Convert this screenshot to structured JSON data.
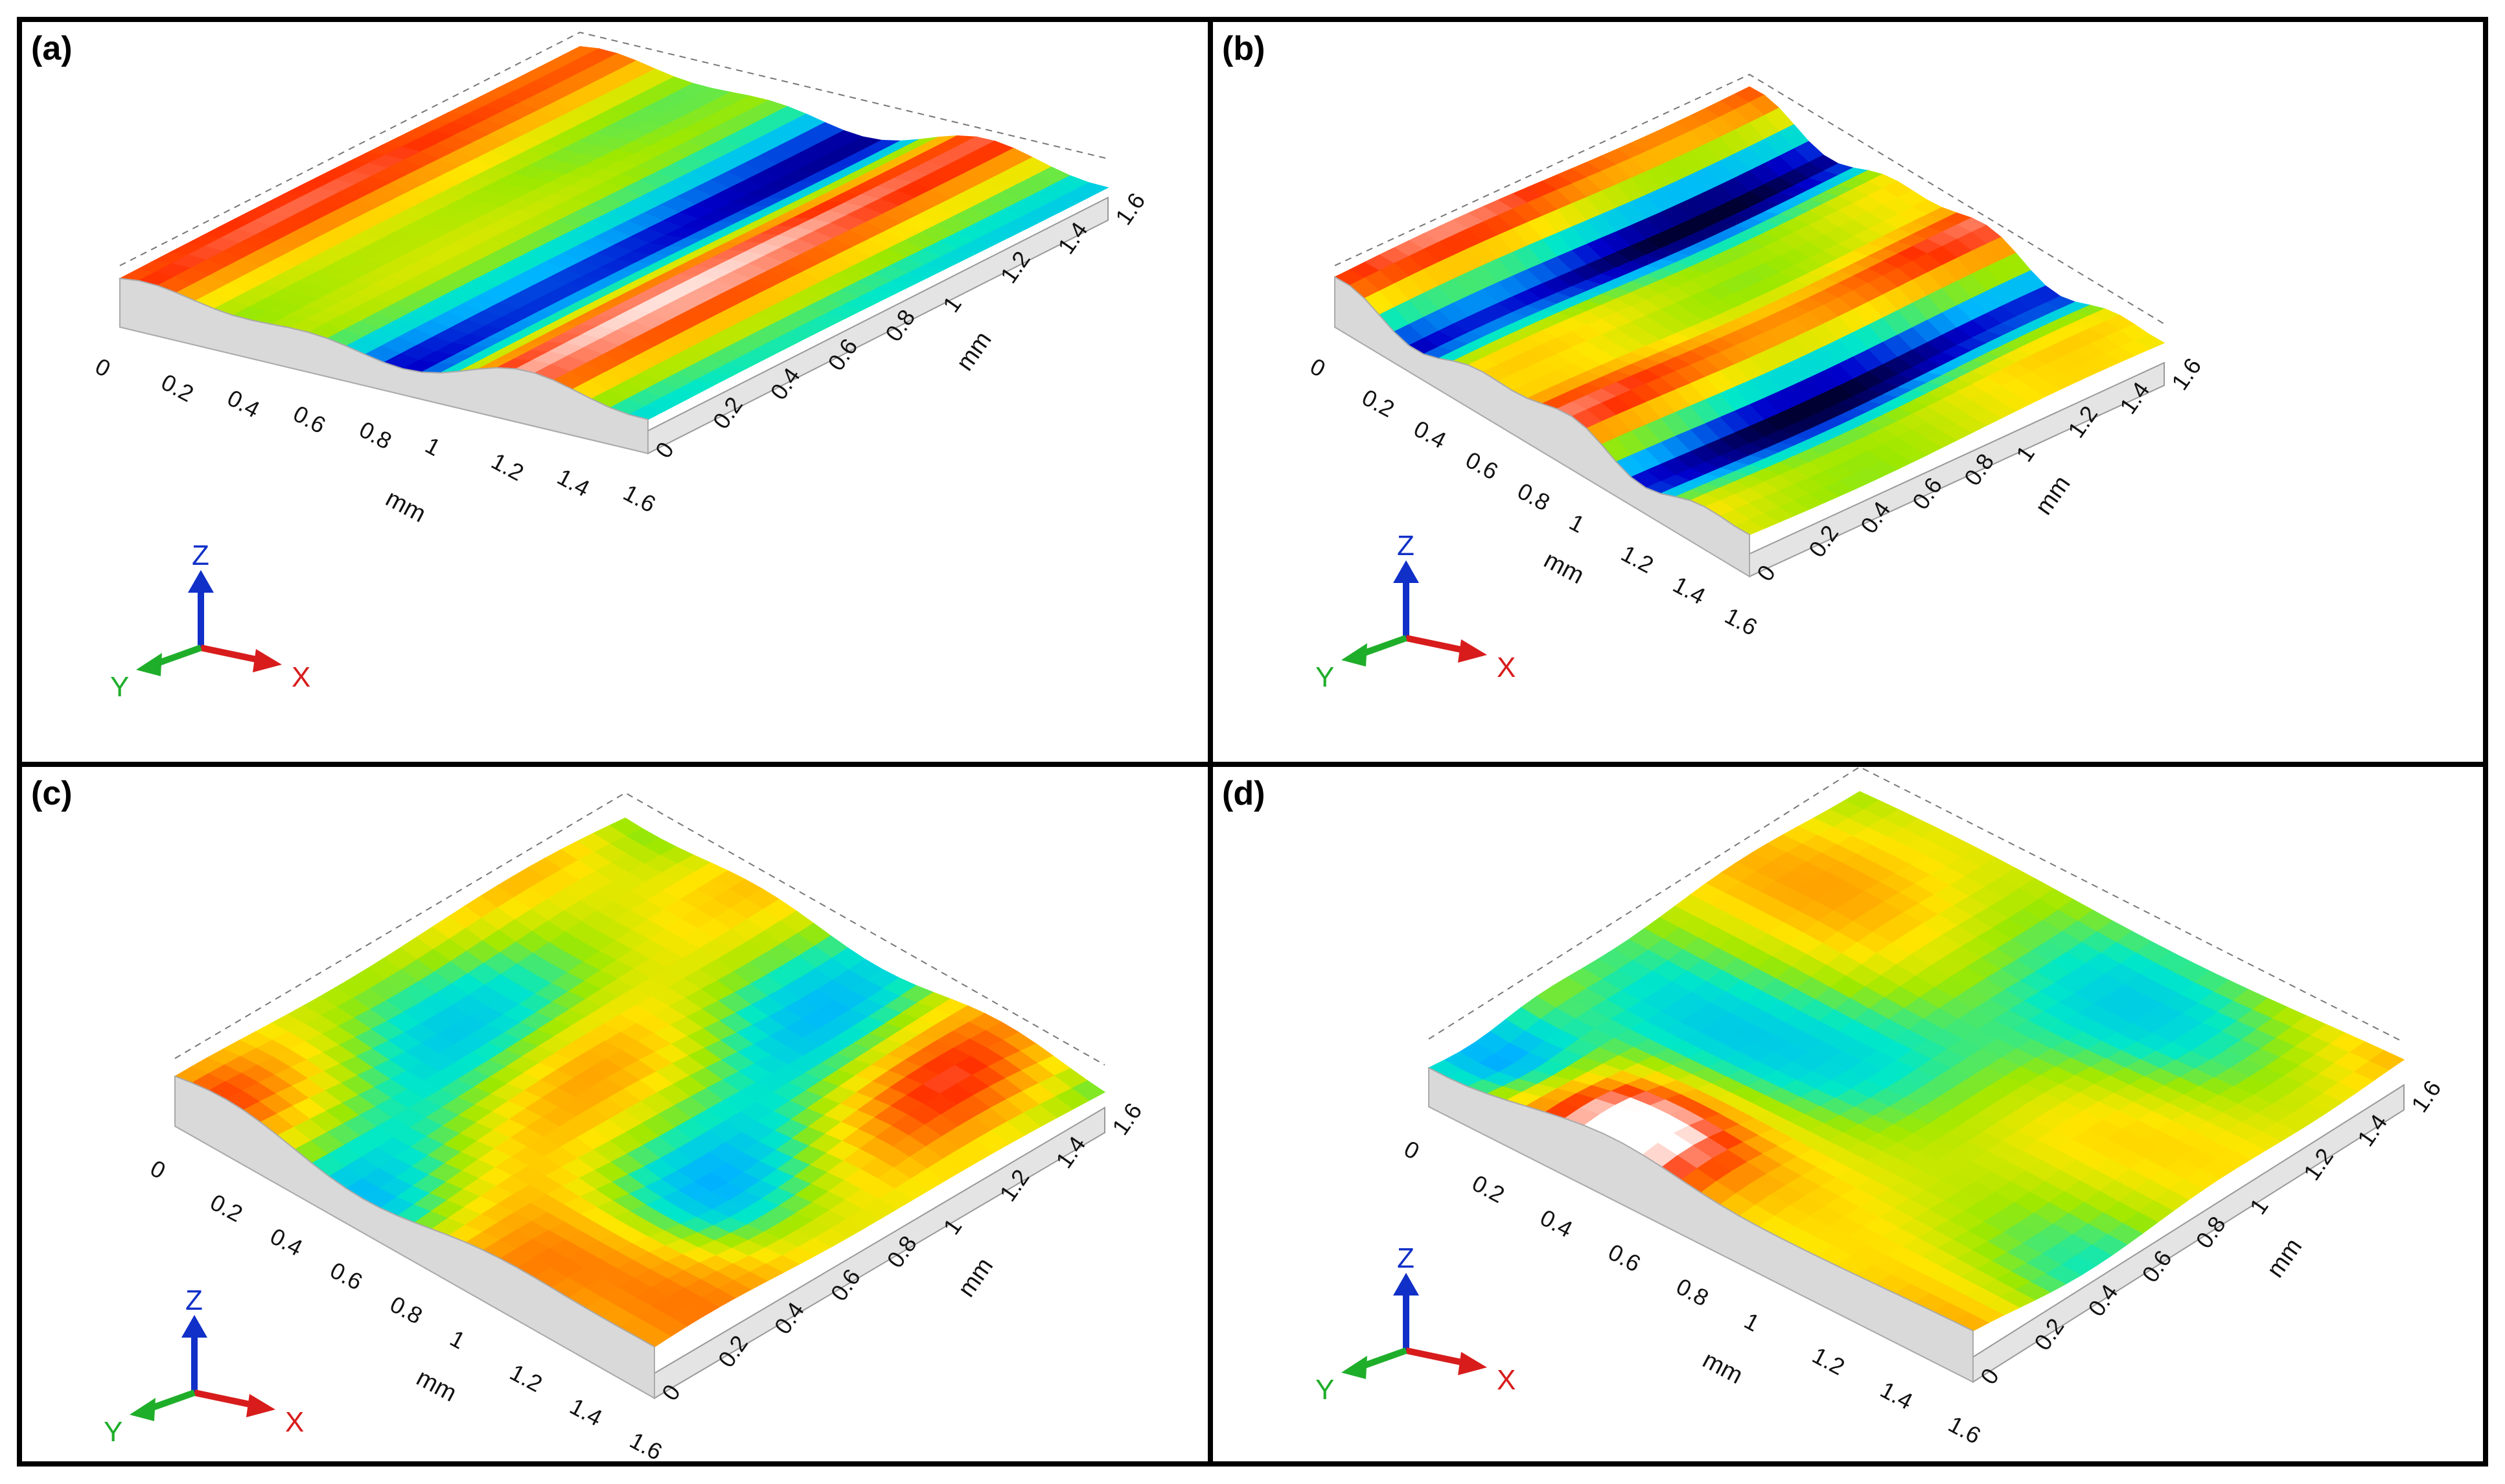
{
  "panels": [
    {
      "id": "a",
      "label": "(a)",
      "surface": "ridges",
      "seed": 1
    },
    {
      "id": "b",
      "label": "(b)",
      "surface": "ridges",
      "seed": 2
    },
    {
      "id": "c",
      "label": "(c)",
      "surface": "blobs",
      "seed": 3
    },
    {
      "id": "d",
      "label": "(d)",
      "surface": "blobs",
      "seed": 4
    }
  ],
  "axes": {
    "unit": "mm",
    "x_ticks": [
      "0",
      "0.2",
      "0.4",
      "0.6",
      "0.8",
      "1",
      "1.2",
      "1.4",
      "1.6"
    ],
    "y_ticks": [
      "0",
      "0.2",
      "0.4",
      "0.6",
      "0.8",
      "1",
      "1.2",
      "1.4",
      "1.6"
    ],
    "x_range": [
      0,
      1.6
    ],
    "y_range": [
      0,
      1.6
    ]
  },
  "triad": {
    "x": "X",
    "y": "Y",
    "z": "Z"
  },
  "colors": {
    "x_axis": "#d81c1c",
    "y_axis": "#1fae2a",
    "z_axis": "#1030c8",
    "colormap": [
      "#000033",
      "#0000cc",
      "#00b4ff",
      "#00e8c8",
      "#9ee800",
      "#ffe600",
      "#ff9a00",
      "#ff3000",
      "#ffffff"
    ],
    "frame": "#000000",
    "box_side": "#cfcfcf"
  }
}
